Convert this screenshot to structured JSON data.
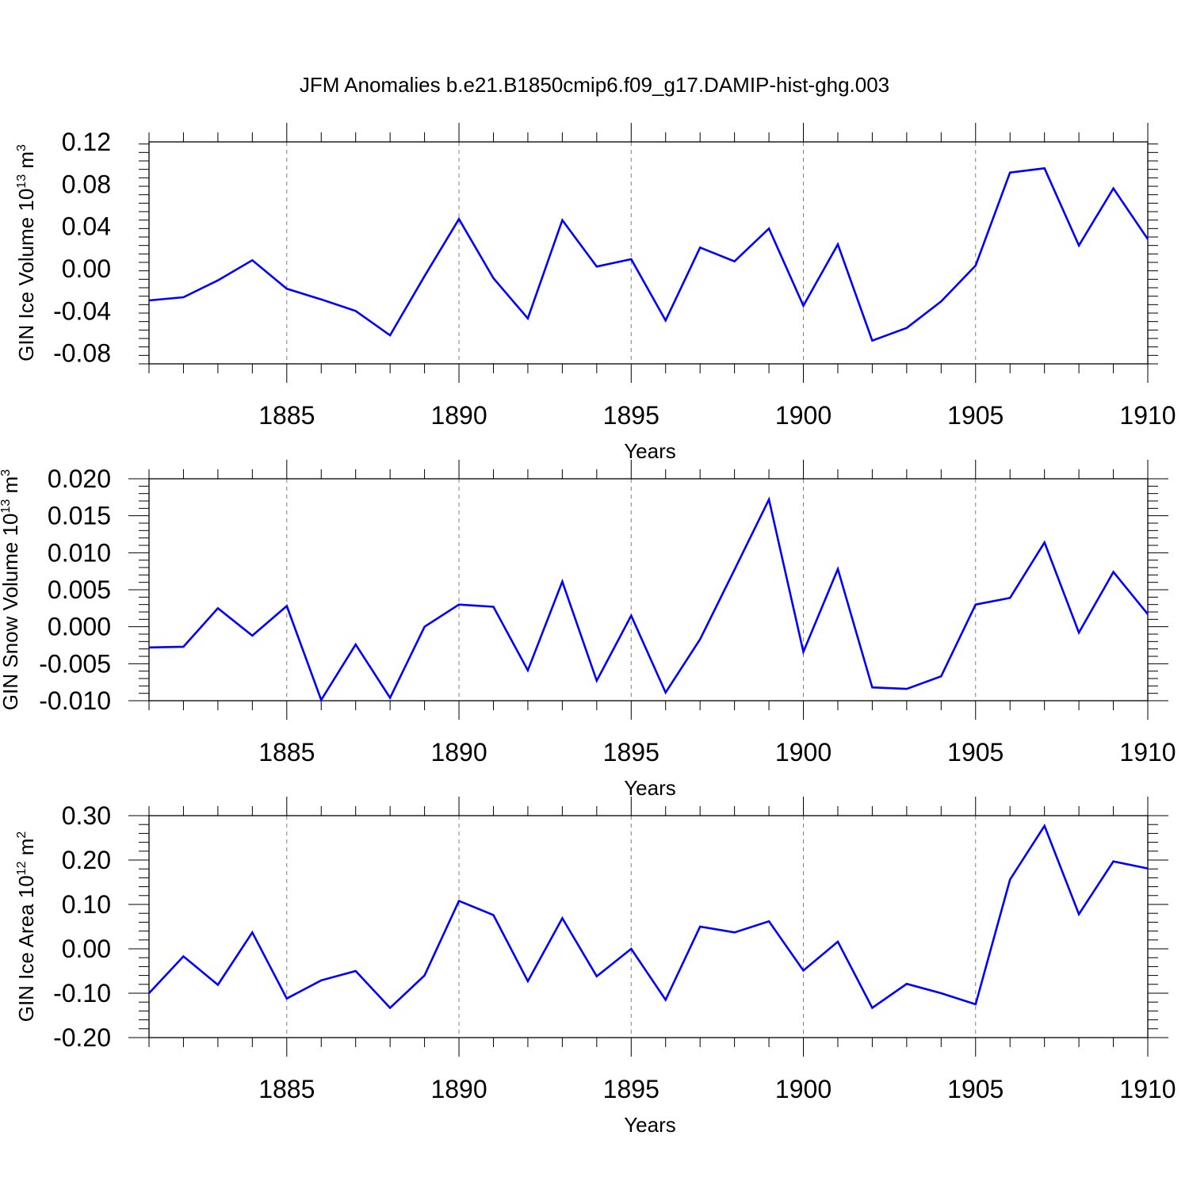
{
  "title": "JFM Anomalies b.e21.B1850cmip6.f09_g17.DAMIP-hist-ghg.003",
  "colors": {
    "line": "#0000ff",
    "axis": "#000000",
    "grid": "#808080"
  },
  "chart_data": [
    {
      "type": "line",
      "ylabel": {
        "text": "GIN Ice Volume 10",
        "exp": "13",
        "unit": " m",
        "unit_exp": "3"
      },
      "xlabel": "Years",
      "xlim": [
        1881,
        1910
      ],
      "ylim": [
        -0.09,
        0.12
      ],
      "yticks": [
        "0.12",
        "0.08",
        "0.04",
        "0.00",
        "-0.04",
        "-0.08"
      ],
      "ytick_values": [
        0.12,
        0.08,
        0.04,
        0.0,
        -0.04,
        -0.08
      ],
      "xticks": [
        "1885",
        "1890",
        "1895",
        "1900",
        "1905",
        "1910"
      ],
      "xtick_values": [
        1885,
        1890,
        1895,
        1900,
        1905,
        1910
      ],
      "grid": "vertical dashed at major x ticks",
      "series": [
        {
          "x": [
            1881,
            1882,
            1883,
            1884,
            1885,
            1886,
            1887,
            1888,
            1889,
            1890,
            1891,
            1892,
            1893,
            1894,
            1895,
            1896,
            1897,
            1898,
            1899,
            1900,
            1901,
            1902,
            1903,
            1904,
            1905,
            1906,
            1907,
            1908,
            1909,
            1910
          ],
          "values": [
            -0.03,
            -0.027,
            -0.011,
            0.008,
            -0.019,
            -0.029,
            -0.04,
            -0.063,
            -0.007,
            0.047,
            -0.009,
            -0.047,
            0.046,
            0.002,
            0.009,
            -0.049,
            0.02,
            0.007,
            0.038,
            -0.035,
            0.023,
            -0.068,
            -0.056,
            -0.031,
            0.003,
            0.091,
            0.095,
            0.022,
            0.076,
            0.028
          ]
        }
      ]
    },
    {
      "type": "line",
      "ylabel": {
        "text": "GIN Snow Volume 10",
        "exp": "13",
        "unit": " m",
        "unit_exp": "3"
      },
      "xlabel": "Years",
      "xlim": [
        1881,
        1910
      ],
      "ylim": [
        -0.01,
        0.02
      ],
      "yticks": [
        "0.020",
        "0.015",
        "0.010",
        "0.005",
        "0.000",
        "-0.005",
        "-0.010"
      ],
      "ytick_values": [
        0.02,
        0.015,
        0.01,
        0.005,
        0.0,
        -0.005,
        -0.01
      ],
      "xticks": [
        "1885",
        "1890",
        "1895",
        "1900",
        "1905",
        "1910"
      ],
      "xtick_values": [
        1885,
        1890,
        1895,
        1900,
        1905,
        1910
      ],
      "grid": "vertical dashed at major x ticks",
      "series": [
        {
          "x": [
            1881,
            1882,
            1883,
            1884,
            1885,
            1886,
            1887,
            1888,
            1889,
            1890,
            1891,
            1892,
            1893,
            1894,
            1895,
            1896,
            1897,
            1898,
            1899,
            1900,
            1901,
            1902,
            1903,
            1904,
            1905,
            1906,
            1907,
            1908,
            1909,
            1910
          ],
          "values": [
            -0.0028,
            -0.0027,
            0.0025,
            -0.0012,
            0.0028,
            -0.0099,
            -0.0024,
            -0.0096,
            0.0,
            0.003,
            0.0027,
            -0.0059,
            0.0061,
            -0.0073,
            0.0015,
            -0.0089,
            -0.0017,
            0.0077,
            0.0172,
            -0.0034,
            0.0078,
            -0.0082,
            -0.0084,
            -0.0067,
            0.003,
            0.0039,
            0.0114,
            -0.0008,
            0.0074,
            0.0017
          ]
        }
      ]
    },
    {
      "type": "line",
      "ylabel": {
        "text": "GIN Ice Area 10",
        "exp": "12",
        "unit": " m",
        "unit_exp": "2"
      },
      "xlabel": "Years",
      "xlim": [
        1881,
        1910
      ],
      "ylim": [
        -0.2,
        0.3
      ],
      "yticks": [
        "0.30",
        "0.20",
        "0.10",
        "0.00",
        "-0.10",
        "-0.20"
      ],
      "ytick_values": [
        0.3,
        0.2,
        0.1,
        0.0,
        -0.1,
        -0.2
      ],
      "xticks": [
        "1885",
        "1890",
        "1895",
        "1900",
        "1905",
        "1910"
      ],
      "xtick_values": [
        1885,
        1890,
        1895,
        1900,
        1905,
        1910
      ],
      "grid": "vertical dashed at major x ticks",
      "series": [
        {
          "x": [
            1881,
            1882,
            1883,
            1884,
            1885,
            1886,
            1887,
            1888,
            1889,
            1890,
            1891,
            1892,
            1893,
            1894,
            1895,
            1896,
            1897,
            1898,
            1899,
            1900,
            1901,
            1902,
            1903,
            1904,
            1905,
            1906,
            1907,
            1908,
            1909,
            1910
          ],
          "values": [
            -0.1,
            -0.017,
            -0.081,
            0.037,
            -0.112,
            -0.071,
            -0.05,
            -0.133,
            -0.06,
            0.108,
            0.076,
            -0.073,
            0.069,
            -0.062,
            0.0,
            -0.115,
            0.05,
            0.037,
            0.062,
            -0.049,
            0.016,
            -0.133,
            -0.079,
            -0.1,
            -0.125,
            0.156,
            0.277,
            0.078,
            0.197,
            0.181
          ]
        }
      ]
    }
  ]
}
